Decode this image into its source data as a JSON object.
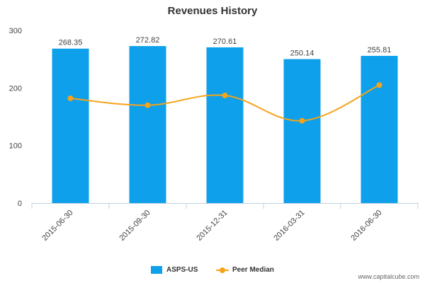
{
  "title": "Revenues History",
  "credit": "www.capitalcube.com",
  "colors": {
    "bar": "#0ea0ea",
    "line": "#f5a31a",
    "axis": "#c0d0e0",
    "text": "#333333",
    "tick_text": "#444444"
  },
  "chart_data": {
    "type": "bar",
    "title": "Revenues History",
    "categories": [
      "2015-06-30",
      "2015-09-30",
      "2015-12-31",
      "2016-03-31",
      "2016-06-30"
    ],
    "series": [
      {
        "name": "ASPS-US",
        "type": "bar",
        "values": [
          268.35,
          272.82,
          270.61,
          250.14,
          255.81
        ],
        "labels": [
          "268.35",
          "272.82",
          "270.61",
          "250.14",
          "255.81"
        ]
      },
      {
        "name": "Peer Median",
        "type": "line",
        "values": [
          182,
          170,
          187,
          143,
          205
        ]
      }
    ],
    "ylim": [
      0,
      300
    ],
    "yticks": [
      0,
      100,
      200,
      300
    ],
    "ytick_labels": [
      "0",
      "100",
      "200",
      "300"
    ],
    "grid": false,
    "legend": "bottom-center"
  }
}
